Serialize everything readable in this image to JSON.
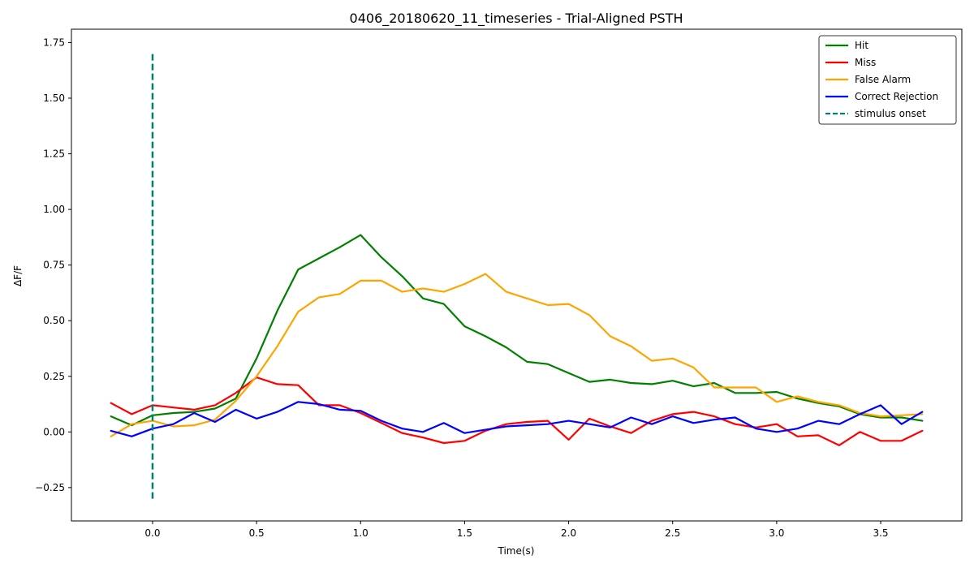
{
  "chart_data": {
    "type": "line",
    "title": "0406_20180620_11_timeseries - Trial-Aligned PSTH",
    "xlabel": "Time(s)",
    "ylabel": "ΔF/F",
    "xlim": [
      -0.39,
      3.89
    ],
    "ylim": [
      -0.4,
      1.81
    ],
    "xticks": [
      0.0,
      0.5,
      1.0,
      1.5,
      2.0,
      2.5,
      3.0,
      3.5
    ],
    "xtick_labels": [
      "0.0",
      "0.5",
      "1.0",
      "1.5",
      "2.0",
      "2.5",
      "3.0",
      "3.5"
    ],
    "yticks": [
      -0.25,
      0.0,
      0.25,
      0.5,
      0.75,
      1.0,
      1.25,
      1.5,
      1.75
    ],
    "ytick_labels": [
      "−0.25",
      "0.00",
      "0.25",
      "0.50",
      "0.75",
      "1.00",
      "1.25",
      "1.50",
      "1.75"
    ],
    "grid": false,
    "legend_position": "top-right",
    "x": [
      -0.2,
      -0.1,
      0.0,
      0.1,
      0.2,
      0.3,
      0.4,
      0.5,
      0.6,
      0.7,
      0.8,
      0.9,
      1.0,
      1.1,
      1.2,
      1.3,
      1.4,
      1.5,
      1.6,
      1.7,
      1.8,
      1.9,
      2.0,
      2.1,
      2.2,
      2.3,
      2.4,
      2.5,
      2.6,
      2.7,
      2.8,
      2.9,
      3.0,
      3.1,
      3.2,
      3.3,
      3.4,
      3.5,
      3.6,
      3.7
    ],
    "series": [
      {
        "name": "Hit",
        "color": "#008000",
        "values": [
          0.07,
          0.03,
          0.075,
          0.085,
          0.09,
          0.105,
          0.15,
          0.33,
          0.545,
          0.73,
          0.78,
          0.83,
          0.885,
          0.785,
          0.7,
          0.6,
          0.575,
          0.475,
          0.43,
          0.38,
          0.315,
          0.305,
          0.265,
          0.225,
          0.235,
          0.22,
          0.215,
          0.23,
          0.205,
          0.22,
          0.175,
          0.175,
          0.18,
          0.15,
          0.13,
          0.115,
          0.08,
          0.065,
          0.065,
          0.05
        ]
      },
      {
        "name": "Miss",
        "color": "#ff0000",
        "values": [
          0.13,
          0.08,
          0.12,
          0.11,
          0.1,
          0.12,
          0.175,
          0.245,
          0.215,
          0.21,
          0.12,
          0.12,
          0.085,
          0.04,
          -0.005,
          -0.025,
          -0.05,
          -0.04,
          0.005,
          0.035,
          0.045,
          0.05,
          -0.035,
          0.06,
          0.025,
          -0.005,
          0.05,
          0.08,
          0.09,
          0.07,
          0.035,
          0.02,
          0.035,
          -0.02,
          -0.015,
          -0.06,
          0.0,
          -0.04,
          -0.04,
          0.005
        ]
      },
      {
        "name": "False Alarm",
        "color": "#ffa500",
        "values": [
          -0.02,
          0.035,
          0.05,
          0.025,
          0.03,
          0.055,
          0.14,
          0.25,
          0.385,
          0.54,
          0.605,
          0.62,
          0.68,
          0.68,
          0.63,
          0.645,
          0.63,
          0.665,
          0.71,
          0.63,
          0.6,
          0.57,
          0.575,
          0.525,
          0.43,
          0.385,
          0.32,
          0.33,
          0.29,
          0.2,
          0.2,
          0.2,
          0.135,
          0.16,
          0.135,
          0.12,
          0.085,
          0.07,
          0.075,
          0.08
        ]
      },
      {
        "name": "Correct Rejection",
        "color": "#0000ff",
        "values": [
          0.005,
          -0.02,
          0.015,
          0.035,
          0.085,
          0.045,
          0.1,
          0.06,
          0.09,
          0.135,
          0.125,
          0.1,
          0.095,
          0.05,
          0.015,
          0.0,
          0.04,
          -0.005,
          0.01,
          0.025,
          0.03,
          0.035,
          0.05,
          0.035,
          0.02,
          0.065,
          0.035,
          0.07,
          0.04,
          0.055,
          0.065,
          0.015,
          0.0,
          0.015,
          0.05,
          0.035,
          0.08,
          0.12,
          0.035,
          0.09
        ]
      }
    ],
    "vline": {
      "name": "stimulus onset",
      "color": "#008073",
      "x": 0.0,
      "ymin": -0.3,
      "ymax": 1.7,
      "dashed": true
    }
  }
}
